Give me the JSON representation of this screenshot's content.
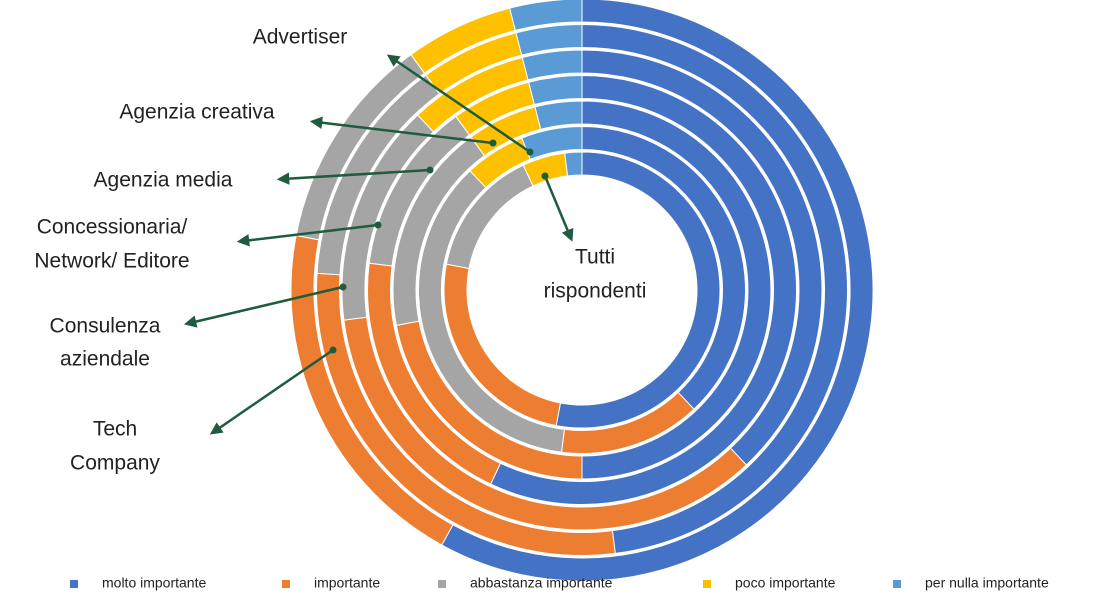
{
  "chart_data": {
    "type": "donut",
    "series": [
      {
        "name": "molto importante",
        "color": "#4472c4"
      },
      {
        "name": "importante",
        "color": "#ed7d31"
      },
      {
        "name": "abbastanza importante",
        "color": "#a5a5a5"
      },
      {
        "name": "poco importante",
        "color": "#ffc000"
      },
      {
        "name": "per nulla importante",
        "color": "#5b9bd5"
      }
    ],
    "rings": [
      {
        "label_lines": [
          "Tutti",
          "rispondenti"
        ],
        "values": [
          53,
          25,
          15,
          5,
          2
        ]
      },
      {
        "label_lines": [
          "Advertiser"
        ],
        "values": [
          38,
          14,
          36,
          6,
          6
        ]
      },
      {
        "label_lines": [
          "Agenzia creativa"
        ],
        "values": [
          50,
          22,
          18,
          6,
          4
        ]
      },
      {
        "label_lines": [
          "Agenzia media"
        ],
        "values": [
          57,
          20,
          13,
          6,
          4
        ]
      },
      {
        "label_lines": [
          "Concessionaria/",
          "Network/ Editore"
        ],
        "values": [
          38,
          35,
          15,
          8,
          4
        ]
      },
      {
        "label_lines": [
          "Consulenza",
          "aziendale"
        ],
        "values": [
          48,
          28,
          14,
          6,
          4
        ]
      },
      {
        "label_lines": [
          "Tech",
          "Company"
        ],
        "values": [
          58,
          20,
          12,
          6,
          4
        ]
      }
    ]
  }
}
